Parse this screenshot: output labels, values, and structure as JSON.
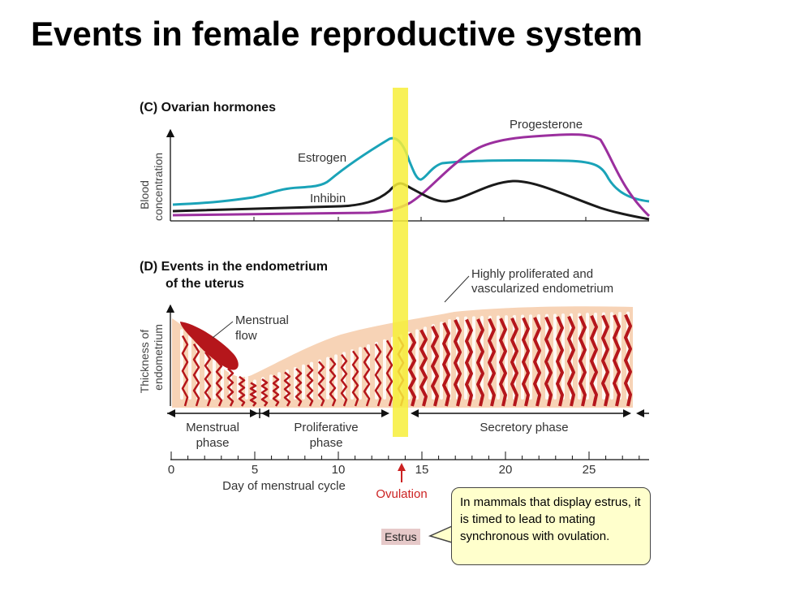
{
  "title": "Events in female reproductive system",
  "panel_c": {
    "heading": "(C)  Ovarian hormones",
    "y_axis_label_1": "Blood",
    "y_axis_label_2": "concentration",
    "labels": {
      "estrogen": "Estrogen",
      "progesterone": "Progesterone",
      "inhibin": "Inhibin"
    }
  },
  "panel_d": {
    "heading_1": "(D)  Events in the endometrium",
    "heading_2": "of the uterus",
    "y_axis_label_1": "Thickness of",
    "y_axis_label_2": "endometrium",
    "menstrual_flow_1": "Menstrual",
    "menstrual_flow_2": "flow",
    "highly_prolif_1": "Highly proliferated and",
    "highly_prolif_2": "vascularized endometrium"
  },
  "phases": {
    "menstrual_1": "Menstrual",
    "menstrual_2": "phase",
    "proliferative_1": "Proliferative",
    "proliferative_2": "phase",
    "secretory": "Secretory phase"
  },
  "x_axis": {
    "label": "Day of menstrual cycle",
    "ticks": [
      "0",
      "5",
      "10",
      "15",
      "20",
      "25"
    ]
  },
  "ovulation_label": "Ovulation",
  "estrus_label": "Estrus",
  "callout_text": "In mammals that display estrus, it is timed to lead to mating synchronous with ovulation.",
  "colors": {
    "estrogen": "#1aa3b8",
    "progesterone": "#9b2f9e",
    "inhibin": "#1a1a1a",
    "highlight": "#f7ef3a",
    "endometrium": "#f7d3b6",
    "vessel": "#b5161b",
    "ovulation": "#cc2222"
  }
}
